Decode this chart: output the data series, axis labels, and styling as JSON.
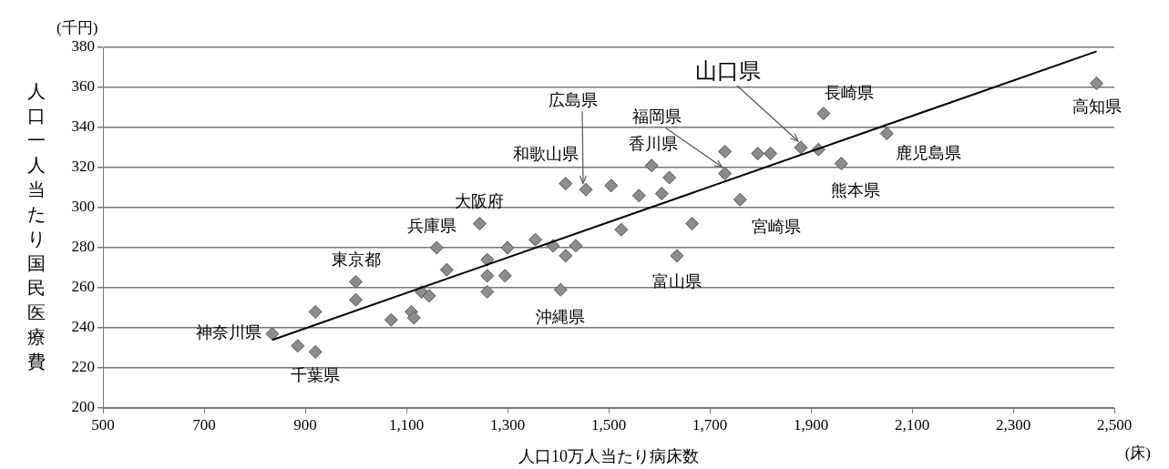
{
  "chart_data": {
    "type": "scatter",
    "xlabel": "人口10万人当たり病床数",
    "ylabel": "人口一人当たり国民医療費",
    "xlim": [
      500,
      2500
    ],
    "ylim": [
      200,
      380
    ],
    "xticks": [
      {
        "value": 500,
        "label": "500"
      },
      {
        "value": 700,
        "label": "700"
      },
      {
        "value": 900,
        "label": "900"
      },
      {
        "value": 1100,
        "label": "1,100"
      },
      {
        "value": 1300,
        "label": "1,300"
      },
      {
        "value": 1500,
        "label": "1,500"
      },
      {
        "value": 1700,
        "label": "1,700"
      },
      {
        "value": 1900,
        "label": "1,900"
      },
      {
        "value": 2100,
        "label": "2,100"
      },
      {
        "value": 2300,
        "label": "2,300"
      },
      {
        "value": 2500,
        "label": "2,500"
      }
    ],
    "yticks": [
      200,
      220,
      240,
      260,
      280,
      300,
      320,
      340,
      360,
      380
    ],
    "grid": "y",
    "legend": false,
    "series": [
      {
        "color": "#8c8c8c",
        "marker": "diamond",
        "x": [
          835,
          885,
          920,
          920,
          1000,
          1000,
          1070,
          1110,
          1115,
          1130,
          1145,
          1160,
          1180,
          1245,
          1260,
          1300,
          1260,
          1260,
          1295,
          1355,
          1390,
          1415,
          1435,
          1405,
          1415,
          1455,
          1505,
          1525,
          1585,
          1620,
          1560,
          1605,
          1665,
          1635,
          1730,
          1730,
          1760,
          1795,
          1820,
          1880,
          1915,
          1925,
          1960,
          2050,
          2465
        ],
        "values": [
          237,
          231,
          228,
          248,
          263,
          254,
          244,
          248,
          245,
          258,
          256,
          280,
          269,
          292,
          274,
          280,
          266,
          258,
          266,
          284,
          281,
          276,
          281,
          259,
          312,
          309,
          311,
          289,
          321,
          315,
          306,
          307,
          292,
          276,
          317,
          328,
          304,
          327,
          327,
          330,
          329,
          347,
          322,
          337,
          362
        ]
      },
      {
        "type": "line",
        "color": "#000000",
        "marker": "none",
        "line_style": "solid",
        "x": [
          835,
          2465
        ],
        "values": [
          234,
          378
        ]
      }
    ],
    "annotations": [
      "(千円)",
      "(床)",
      {
        "text": "神奈川県",
        "x": 835,
        "y": 237
      },
      {
        "text": "千葉県",
        "x": 920,
        "y": 228
      },
      {
        "text": "東京都",
        "x": 1000,
        "y": 263
      },
      {
        "text": "兵庫県",
        "x": 1160,
        "y": 280
      },
      {
        "text": "大阪府",
        "x": 1245,
        "y": 292
      },
      {
        "text": "沖縄県",
        "x": 1405,
        "y": 259
      },
      {
        "text": "和歌山県",
        "x": 1415,
        "y": 312
      },
      {
        "text": "広島県",
        "x": 1455,
        "y": 309
      },
      {
        "text": "香川県",
        "x": 1585,
        "y": 321
      },
      {
        "text": "富山県",
        "x": 1635,
        "y": 276
      },
      {
        "text": "福岡県",
        "x": 1730,
        "y": 317
      },
      {
        "text": "宮崎県",
        "x": 1760,
        "y": 304
      },
      {
        "text": "山口県",
        "x": 1880,
        "y": 330
      },
      {
        "text": "長崎県",
        "x": 1925,
        "y": 347
      },
      {
        "text": "熊本県",
        "x": 1960,
        "y": 322
      },
      {
        "text": "鹿児島県",
        "x": 2050,
        "y": 337
      },
      {
        "text": "高知県",
        "x": 2465,
        "y": 362
      }
    ]
  }
}
